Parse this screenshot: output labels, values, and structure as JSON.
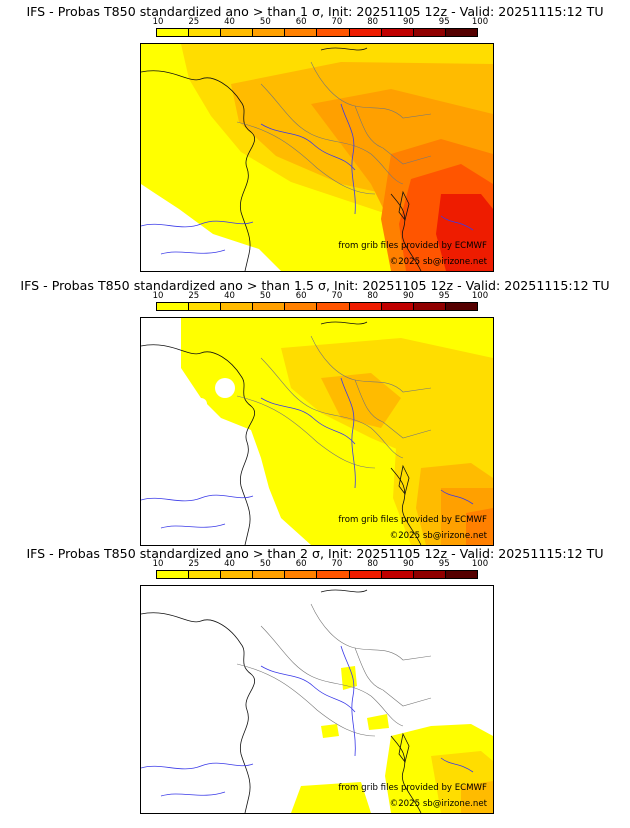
{
  "colorbar": {
    "ticks": [
      "10",
      "25",
      "40",
      "50",
      "60",
      "70",
      "80",
      "90",
      "95",
      "100"
    ],
    "colors": [
      "#ffff00",
      "#ffdd00",
      "#ffbb00",
      "#ffa000",
      "#ff8000",
      "#ff5500",
      "#ee1c00",
      "#c00000",
      "#900000",
      "#550000"
    ]
  },
  "credits": {
    "source": "from grib files provided by ECMWF",
    "copyright": "©2025 sb@irizone.net"
  },
  "panels": [
    {
      "title": "IFS - Probas T850  standardized ano > than 1 σ, Init: 20251105 12z - Valid: 20251115:12 TU",
      "sigma": 1
    },
    {
      "title": "IFS - Probas T850  standardized ano > than 1.5 σ, Init: 20251105 12z - Valid: 20251115:12 TU",
      "sigma": 1.5
    },
    {
      "title": "IFS - Probas T850  standardized ano > than 2 σ, Init: 20251105 12z - Valid: 20251115:12 TU",
      "sigma": 2
    }
  ]
}
